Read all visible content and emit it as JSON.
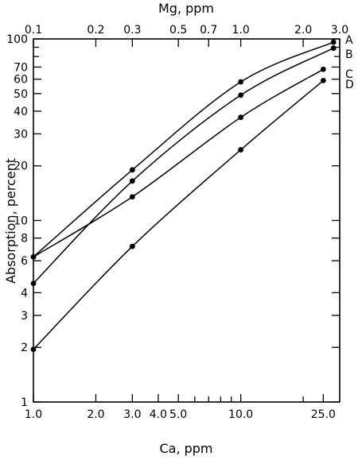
{
  "chart_data": {
    "type": "line",
    "title": "",
    "xlabel": "Ca, ppm",
    "x2label": "Mg, ppm",
    "ylabel": "Absorption, percent",
    "x_scale": "log",
    "y_scale": "log",
    "xlim": [
      1.0,
      30.0
    ],
    "ylim": [
      1,
      100
    ],
    "x_ticks": [
      {
        "value": 1.0,
        "label": "1.0"
      },
      {
        "value": 2.0,
        "label": "2.0"
      },
      {
        "value": 3.0,
        "label": "3.0"
      },
      {
        "value": 4.0,
        "label": "4.0"
      },
      {
        "value": 5.0,
        "label": "5.0"
      },
      {
        "value": 10.0,
        "label": "10.0"
      },
      {
        "value": 25.0,
        "label": "25.0"
      }
    ],
    "x_minor_ticks": [
      6,
      7,
      8,
      9,
      20
    ],
    "x2_ticks": [
      {
        "value": 0.1,
        "label": "0.1"
      },
      {
        "value": 0.2,
        "label": "0.2"
      },
      {
        "value": 0.3,
        "label": "0.3"
      },
      {
        "value": 0.5,
        "label": "0.5"
      },
      {
        "value": 0.7,
        "label": "0.7"
      },
      {
        "value": 1.0,
        "label": "1.0"
      },
      {
        "value": 2.0,
        "label": "2.0"
      },
      {
        "value": 3.0,
        "label": "3.0"
      }
    ],
    "y_ticks": [
      {
        "value": 1,
        "label": "1"
      },
      {
        "value": 2,
        "label": "2"
      },
      {
        "value": 3,
        "label": "3"
      },
      {
        "value": 4,
        "label": "4"
      },
      {
        "value": 6,
        "label": "6"
      },
      {
        "value": 8,
        "label": "8"
      },
      {
        "value": 10,
        "label": "10"
      },
      {
        "value": 20,
        "label": "20"
      },
      {
        "value": 30,
        "label": "30"
      },
      {
        "value": 40,
        "label": "40"
      },
      {
        "value": 50,
        "label": "50"
      },
      {
        "value": 60,
        "label": "60"
      },
      {
        "value": 70,
        "label": "70"
      },
      {
        "value": 100,
        "label": "100"
      }
    ],
    "y_minor_ticks": [
      80,
      90
    ],
    "grid": false,
    "series": [
      {
        "name": "A",
        "x": [
          1.0,
          3.0,
          10.0,
          28.0
        ],
        "y": [
          6.3,
          19,
          58,
          96
        ]
      },
      {
        "name": "B",
        "x": [
          1.0,
          3.0,
          10.0,
          28.0
        ],
        "y": [
          4.5,
          16.5,
          49,
          89
        ]
      },
      {
        "name": "C",
        "x": [
          1.0,
          3.0,
          10.0,
          25.0
        ],
        "y": [
          6.3,
          13.5,
          37,
          68
        ]
      },
      {
        "name": "D",
        "x": [
          1.0,
          3.0,
          10.0,
          25.0
        ],
        "y": [
          1.95,
          7.2,
          24.5,
          59
        ]
      }
    ]
  }
}
